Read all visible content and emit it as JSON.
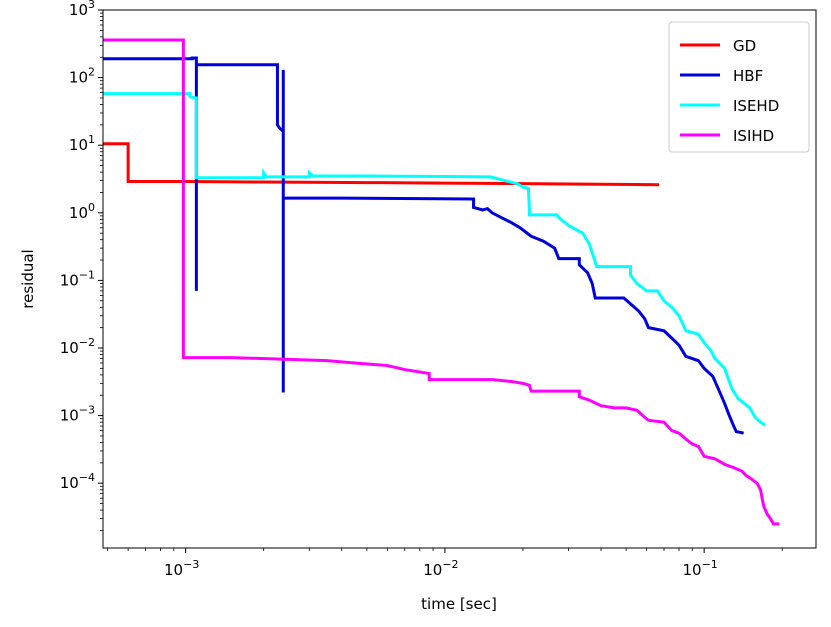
{
  "chart_data": {
    "type": "line",
    "xscale": "log",
    "yscale": "log",
    "xlabel": "time [sec]",
    "ylabel": "residual",
    "xlim": [
      0.00048,
      0.27
    ],
    "ylim": [
      1.1e-05,
      1000
    ],
    "grid": false,
    "legend_position": "top-right",
    "x_ticks": [
      {
        "value": 0.001,
        "base": "10",
        "exp": "−3"
      },
      {
        "value": 0.01,
        "base": "10",
        "exp": "−2"
      },
      {
        "value": 0.1,
        "base": "10",
        "exp": "−1"
      }
    ],
    "y_ticks": [
      {
        "value": 0.0001,
        "base": "10",
        "exp": "−4"
      },
      {
        "value": 0.001,
        "base": "10",
        "exp": "−3"
      },
      {
        "value": 0.01,
        "base": "10",
        "exp": "−2"
      },
      {
        "value": 0.1,
        "base": "10",
        "exp": "−1"
      },
      {
        "value": 1,
        "base": "10",
        "exp": "0"
      },
      {
        "value": 10,
        "base": "10",
        "exp": "1"
      },
      {
        "value": 100,
        "base": "10",
        "exp": "2"
      },
      {
        "value": 1000,
        "base": "10",
        "exp": "3"
      }
    ],
    "series": [
      {
        "name": "GD",
        "color": "#ff0000",
        "points": [
          [
            0.00048,
            10.5
          ],
          [
            0.0006,
            10.5
          ],
          [
            0.0006,
            2.9
          ],
          [
            0.001,
            2.9
          ],
          [
            0.002,
            2.85
          ],
          [
            0.005,
            2.8
          ],
          [
            0.01,
            2.75
          ],
          [
            0.02,
            2.7
          ],
          [
            0.04,
            2.65
          ],
          [
            0.067,
            2.6
          ]
        ]
      },
      {
        "name": "HBF",
        "color": "#0000dd",
        "points": [
          [
            0.00048,
            190
          ],
          [
            0.00106,
            190
          ],
          [
            0.00106,
            195
          ],
          [
            0.0011,
            195
          ],
          [
            0.0011,
            0.07
          ],
          [
            0.0011,
            155
          ],
          [
            0.00226,
            155
          ],
          [
            0.00226,
            20
          ],
          [
            0.0023,
            18
          ],
          [
            0.00238,
            16
          ],
          [
            0.00238,
            0.0022
          ],
          [
            0.00238,
            130
          ],
          [
            0.00238,
            1.65
          ],
          [
            0.004,
            1.65
          ],
          [
            0.008,
            1.62
          ],
          [
            0.0129,
            1.6
          ],
          [
            0.0129,
            1.2
          ],
          [
            0.014,
            1.1
          ],
          [
            0.0146,
            1.15
          ],
          [
            0.0152,
            1.0
          ],
          [
            0.0165,
            0.85
          ],
          [
            0.018,
            0.72
          ],
          [
            0.0195,
            0.6
          ],
          [
            0.0215,
            0.45
          ],
          [
            0.024,
            0.38
          ],
          [
            0.0265,
            0.3
          ],
          [
            0.0275,
            0.21
          ],
          [
            0.033,
            0.21
          ],
          [
            0.033,
            0.17
          ],
          [
            0.0355,
            0.13
          ],
          [
            0.037,
            0.09
          ],
          [
            0.038,
            0.055
          ],
          [
            0.049,
            0.055
          ],
          [
            0.052,
            0.045
          ],
          [
            0.056,
            0.035
          ],
          [
            0.059,
            0.027
          ],
          [
            0.061,
            0.02
          ],
          [
            0.07,
            0.018
          ],
          [
            0.075,
            0.014
          ],
          [
            0.08,
            0.011
          ],
          [
            0.085,
            0.0075
          ],
          [
            0.095,
            0.0065
          ],
          [
            0.1,
            0.005
          ],
          [
            0.108,
            0.0038
          ],
          [
            0.115,
            0.0022
          ],
          [
            0.12,
            0.0015
          ],
          [
            0.125,
            0.001
          ],
          [
            0.13,
            0.0007
          ],
          [
            0.133,
            0.00058
          ],
          [
            0.142,
            0.00055
          ]
        ]
      },
      {
        "name": "ISEHD",
        "color": "#00ffff",
        "points": [
          [
            0.00048,
            58
          ],
          [
            0.00104,
            58
          ],
          [
            0.00104,
            52
          ],
          [
            0.0011,
            50
          ],
          [
            0.0011,
            3.3
          ],
          [
            0.002,
            3.3
          ],
          [
            0.002,
            3.9
          ],
          [
            0.00205,
            3.4
          ],
          [
            0.003,
            3.4
          ],
          [
            0.003,
            3.9
          ],
          [
            0.0031,
            3.5
          ],
          [
            0.005,
            3.5
          ],
          [
            0.01,
            3.45
          ],
          [
            0.015,
            3.4
          ],
          [
            0.017,
            3.0
          ],
          [
            0.019,
            2.7
          ],
          [
            0.02,
            2.4
          ],
          [
            0.021,
            2.3
          ],
          [
            0.0212,
            0.93
          ],
          [
            0.027,
            0.93
          ],
          [
            0.028,
            0.8
          ],
          [
            0.03,
            0.65
          ],
          [
            0.034,
            0.5
          ],
          [
            0.036,
            0.35
          ],
          [
            0.0375,
            0.22
          ],
          [
            0.0385,
            0.16
          ],
          [
            0.052,
            0.16
          ],
          [
            0.052,
            0.12
          ],
          [
            0.055,
            0.09
          ],
          [
            0.06,
            0.07
          ],
          [
            0.066,
            0.07
          ],
          [
            0.07,
            0.05
          ],
          [
            0.075,
            0.04
          ],
          [
            0.08,
            0.03
          ],
          [
            0.085,
            0.018
          ],
          [
            0.095,
            0.016
          ],
          [
            0.1,
            0.012
          ],
          [
            0.106,
            0.0092
          ],
          [
            0.11,
            0.007
          ],
          [
            0.12,
            0.005
          ],
          [
            0.123,
            0.0038
          ],
          [
            0.128,
            0.0025
          ],
          [
            0.135,
            0.0018
          ],
          [
            0.15,
            0.0013
          ],
          [
            0.157,
            0.00095
          ],
          [
            0.165,
            0.0008
          ],
          [
            0.172,
            0.00072
          ]
        ]
      },
      {
        "name": "ISIHD",
        "color": "#ff00ff",
        "points": [
          [
            0.00048,
            360
          ],
          [
            0.00098,
            360
          ],
          [
            0.00098,
            0.0072
          ],
          [
            0.0015,
            0.0072
          ],
          [
            0.0025,
            0.0068
          ],
          [
            0.0035,
            0.0065
          ],
          [
            0.0045,
            0.006
          ],
          [
            0.006,
            0.0055
          ],
          [
            0.007,
            0.0048
          ],
          [
            0.0087,
            0.0042
          ],
          [
            0.0087,
            0.0034
          ],
          [
            0.0153,
            0.0034
          ],
          [
            0.018,
            0.0032
          ],
          [
            0.02,
            0.003
          ],
          [
            0.0212,
            0.0028
          ],
          [
            0.0215,
            0.0023
          ],
          [
            0.033,
            0.0023
          ],
          [
            0.033,
            0.0019
          ],
          [
            0.036,
            0.0017
          ],
          [
            0.04,
            0.0014
          ],
          [
            0.045,
            0.0013
          ],
          [
            0.05,
            0.0013
          ],
          [
            0.055,
            0.0012
          ],
          [
            0.058,
            0.001
          ],
          [
            0.061,
            0.00085
          ],
          [
            0.07,
            0.0008
          ],
          [
            0.075,
            0.0006
          ],
          [
            0.08,
            0.00055
          ],
          [
            0.085,
            0.00045
          ],
          [
            0.09,
            0.00038
          ],
          [
            0.095,
            0.00035
          ],
          [
            0.1,
            0.00025
          ],
          [
            0.11,
            0.00023
          ],
          [
            0.12,
            0.00019
          ],
          [
            0.13,
            0.00017
          ],
          [
            0.14,
            0.00015
          ],
          [
            0.145,
            0.00013
          ],
          [
            0.15,
            0.00012
          ],
          [
            0.16,
            0.0001
          ],
          [
            0.165,
            8e-05
          ],
          [
            0.168,
            5.5e-05
          ],
          [
            0.17,
            4.5e-05
          ],
          [
            0.175,
            3.5e-05
          ],
          [
            0.18,
            3e-05
          ],
          [
            0.185,
            2.5e-05
          ],
          [
            0.195,
            2.5e-05
          ]
        ]
      }
    ]
  }
}
